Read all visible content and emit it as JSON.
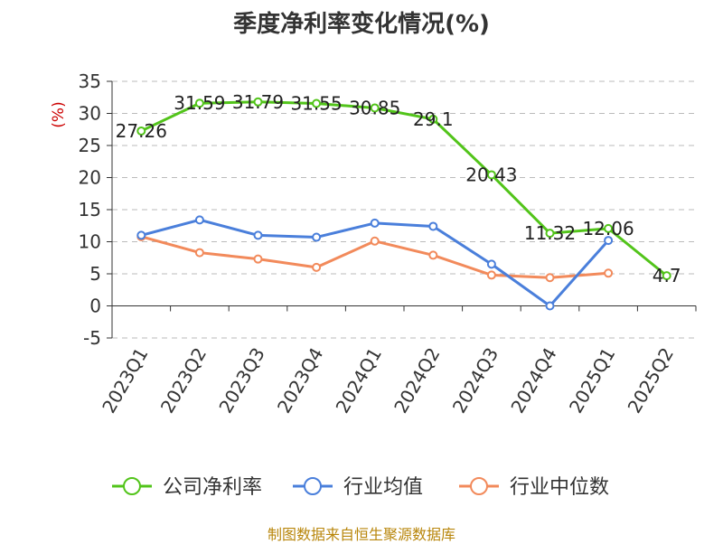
{
  "chart_data": {
    "type": "line",
    "title": "季度净利率变化情况(%)",
    "ylabel": "(%)",
    "categories": [
      "2023Q1",
      "2023Q2",
      "2023Q3",
      "2023Q4",
      "2024Q1",
      "2024Q2",
      "2024Q3",
      "2024Q4",
      "2025Q1",
      "2025Q2"
    ],
    "ylim": [
      -5,
      35
    ],
    "yticks": [
      -5,
      0,
      5,
      10,
      15,
      20,
      25,
      30,
      35
    ],
    "grid": true,
    "legend_position": "bottom",
    "series": [
      {
        "name": "公司净利率",
        "color": "#52c41a",
        "values": [
          27.26,
          31.59,
          31.79,
          31.55,
          30.85,
          29.1,
          20.43,
          11.32,
          12.06,
          4.7
        ],
        "labels": [
          "27.26",
          "31.59",
          "31.79",
          "31.55",
          "30.85",
          "29.1",
          "20.43",
          "11.32",
          "12.06",
          "4.7"
        ]
      },
      {
        "name": "行业均值",
        "color": "#4a7fdb",
        "values": [
          11.0,
          13.4,
          11.0,
          10.7,
          12.9,
          12.4,
          6.5,
          0.0,
          10.2,
          null
        ]
      },
      {
        "name": "行业中位数",
        "color": "#f28a5b",
        "values": [
          10.8,
          8.3,
          7.3,
          6.0,
          10.1,
          7.9,
          4.8,
          4.4,
          5.1,
          null
        ]
      }
    ]
  },
  "source": "制图数据来自恒生聚源数据库"
}
